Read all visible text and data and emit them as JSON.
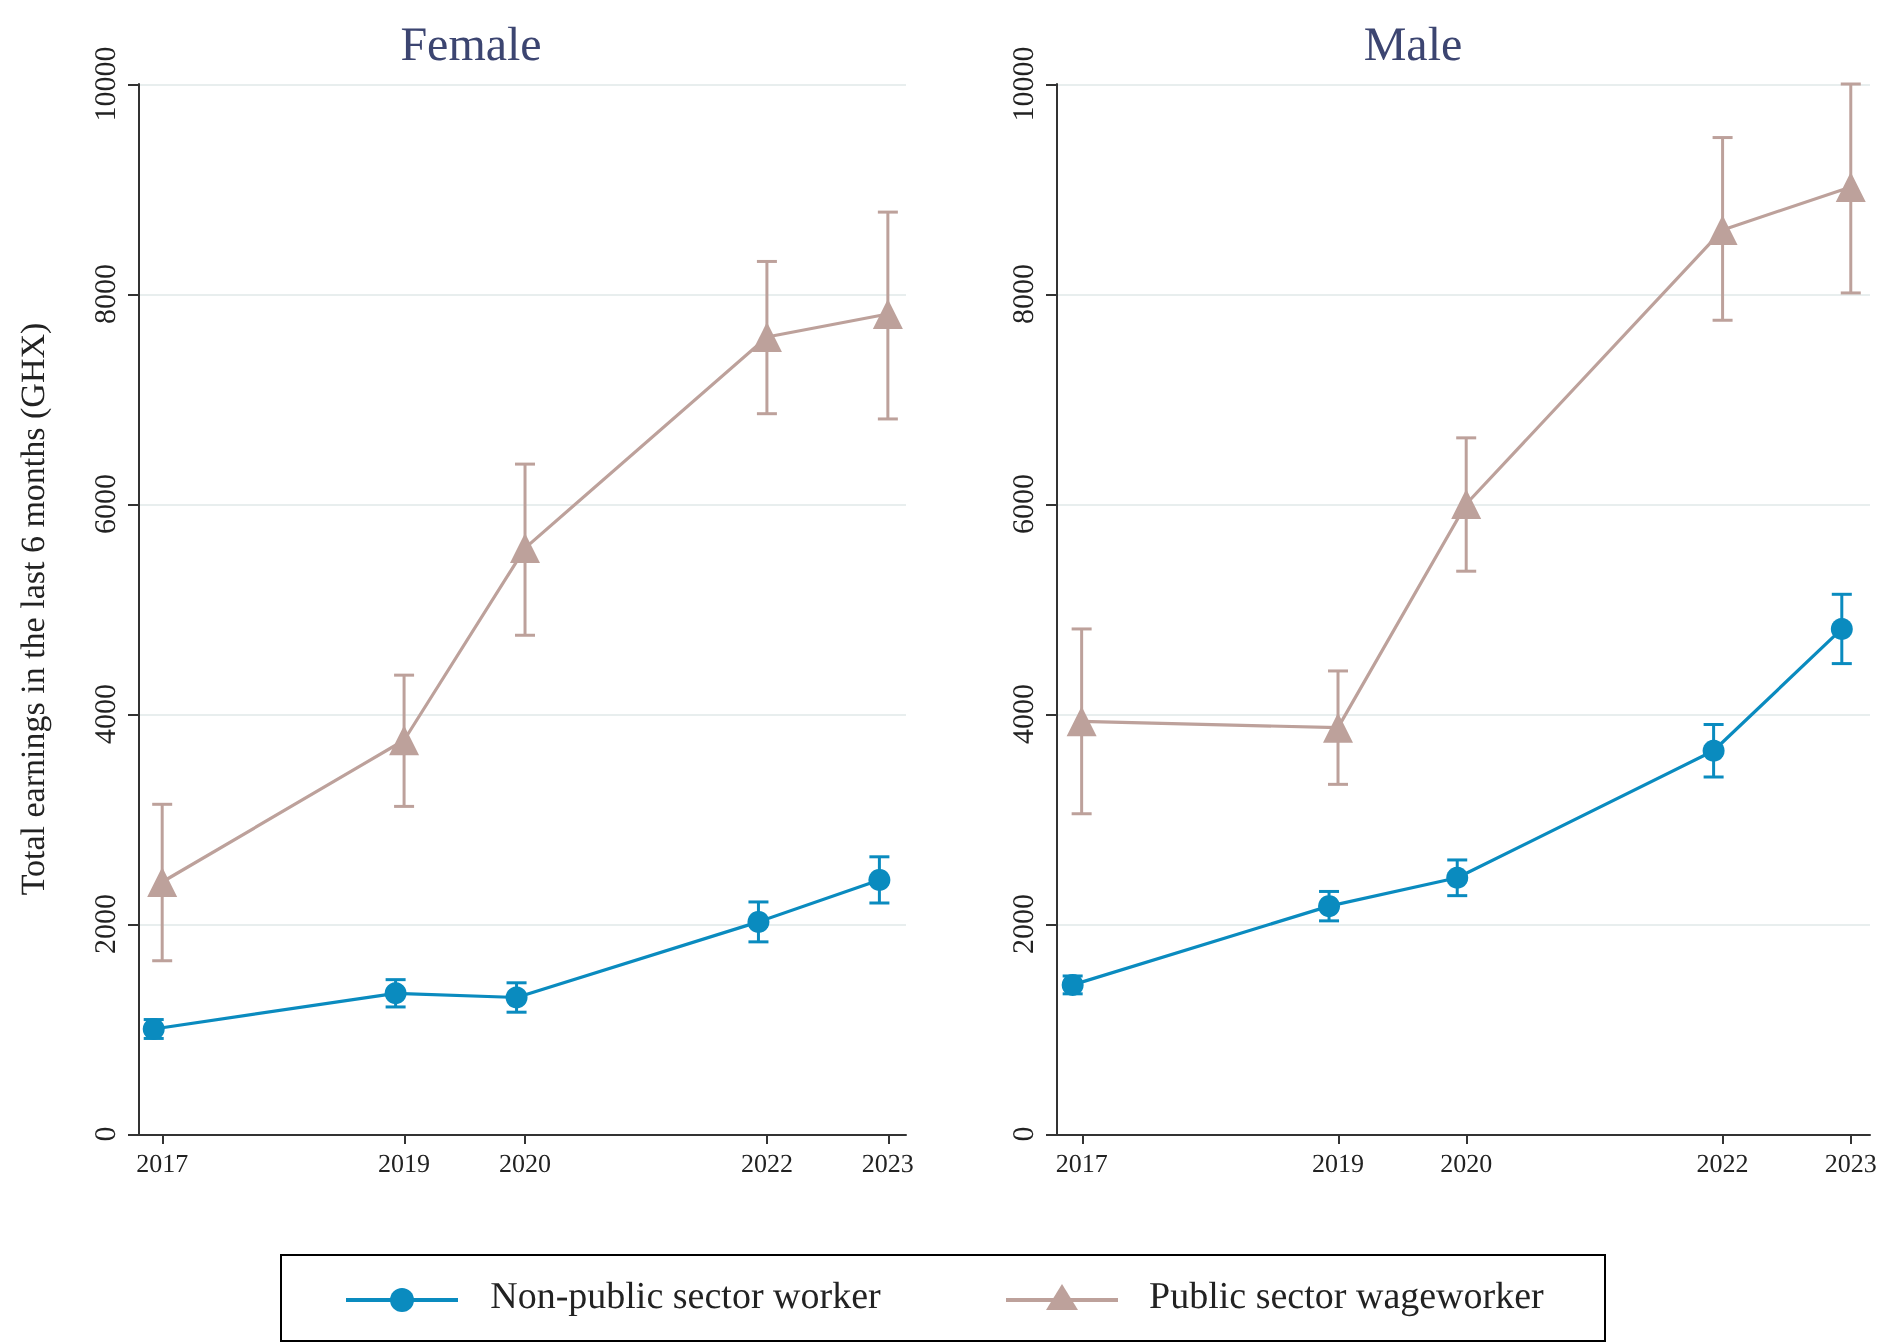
{
  "chart_data": [
    {
      "type": "line",
      "title": "Female",
      "ylabel": "Total earnings in the last 6 months (GHX)",
      "xlim": [
        2016.8,
        2023.15
      ],
      "xticks": [
        2017,
        2019,
        2020,
        2022,
        2023
      ],
      "ylim": [
        0,
        10000
      ],
      "yticks": [
        0,
        2000,
        4000,
        6000,
        8000,
        10000
      ],
      "grid": "y",
      "legend": "bottom",
      "series": [
        {
          "name": "Non-public sector worker",
          "color": "#0a8bbf",
          "marker": "circle",
          "x": [
            2016.93,
            2018.93,
            2019.93,
            2021.93,
            2022.93
          ],
          "values": [
            1000,
            1340,
            1300,
            2020,
            2420
          ],
          "errors": [
            90,
            130,
            140,
            190,
            220
          ]
        },
        {
          "name": "Public sector wageworker",
          "color": "#bda19b",
          "marker": "triangle",
          "x": [
            2017,
            2019,
            2020,
            2022,
            2023
          ],
          "values": [
            2400,
            3750,
            5580,
            7590,
            7810
          ],
          "errors": [
            [
              1650,
              3140
            ],
            [
              3120,
              4370
            ],
            [
              4750,
              6380
            ],
            [
              6860,
              8310
            ],
            [
              6810,
              8780
            ]
          ]
        }
      ]
    },
    {
      "type": "line",
      "title": "Male",
      "xlim": [
        2016.8,
        2023.15
      ],
      "xticks": [
        2017,
        2019,
        2020,
        2022,
        2023
      ],
      "ylim": [
        0,
        10000
      ],
      "yticks": [
        0,
        2000,
        4000,
        6000,
        8000,
        10000
      ],
      "grid": "y",
      "series": [
        {
          "color": "#0a8bbf",
          "marker": "circle",
          "x": [
            2016.93,
            2018.93,
            2019.93,
            2021.93,
            2022.93
          ],
          "values": [
            1420,
            2170,
            2440,
            3650,
            4810
          ],
          "errors": [
            85,
            140,
            170,
            250,
            330
          ]
        },
        {
          "color": "#bda19b",
          "marker": "triangle",
          "x": [
            2017,
            2019,
            2020,
            2022,
            2023
          ],
          "values": [
            3930,
            3870,
            6000,
            8610,
            9020
          ],
          "errors": [
            [
              3050,
              4810
            ],
            [
              3330,
              4410
            ],
            [
              5360,
              6630
            ],
            [
              7750,
              9490
            ],
            [
              8010,
              10000
            ]
          ]
        }
      ]
    }
  ]
}
